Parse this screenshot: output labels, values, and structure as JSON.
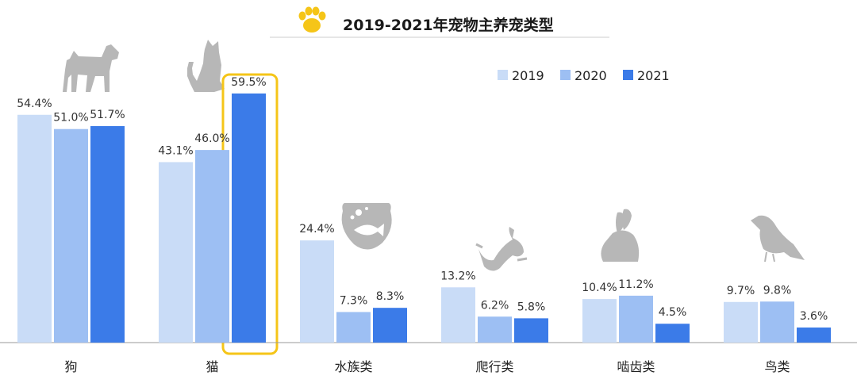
{
  "chart_data": {
    "type": "bar",
    "title": "2019-2021年宠物主养宠类型",
    "categories": [
      "狗",
      "猫",
      "水族类",
      "爬行类",
      "啮齿类",
      "鸟类"
    ],
    "series": [
      {
        "name": "2019",
        "values": [
          54.4,
          43.1,
          24.4,
          13.2,
          10.4,
          9.7
        ],
        "labels": [
          "54.4%",
          "43.1%",
          "24.4%",
          "13.2%",
          "10.4%",
          "9.7%"
        ]
      },
      {
        "name": "2020",
        "values": [
          51.0,
          46.0,
          7.3,
          6.2,
          11.2,
          9.8
        ],
        "labels": [
          "51.0%",
          "46.0%",
          "7.3%",
          "6.2%",
          "11.2%",
          "9.8%"
        ]
      },
      {
        "name": "2021",
        "values": [
          51.7,
          59.5,
          8.3,
          5.8,
          4.5,
          3.6
        ],
        "labels": [
          "51.7%",
          "59.5%",
          "8.3%",
          "5.8%",
          "4.5%",
          "3.6%"
        ]
      }
    ],
    "unit": "%",
    "ylim": [
      0,
      60
    ],
    "legend_position": "top-right",
    "highlight": {
      "category": "猫",
      "series": "2021",
      "color": "#f5c518"
    },
    "colors": {
      "2019": "#c9dcf7",
      "2020": "#9dbff3",
      "2021": "#3b7be8",
      "axis": "#999999",
      "icon": "#b7b7b7",
      "paw": "#f5c518"
    },
    "icons": [
      "dog-icon",
      "cat-icon",
      "fish-bowl-icon",
      "lizard-icon",
      "rabbit-icon",
      "bird-icon"
    ]
  }
}
